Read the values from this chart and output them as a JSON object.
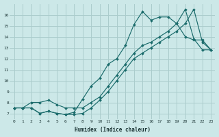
{
  "xlabel": "Humidex (Indice chaleur)",
  "bg_color": "#cce8e8",
  "grid_color": "#aacccc",
  "line_color": "#1a6b6b",
  "xlim": [
    -0.5,
    23.5
  ],
  "ylim": [
    6.5,
    17.0
  ],
  "xticks": [
    0,
    1,
    2,
    3,
    4,
    5,
    6,
    7,
    8,
    9,
    10,
    11,
    12,
    13,
    14,
    15,
    16,
    17,
    18,
    19,
    20,
    21,
    22,
    23
  ],
  "yticks": [
    7,
    8,
    9,
    10,
    11,
    12,
    13,
    14,
    15,
    16
  ],
  "line1_x": [
    0,
    1,
    2,
    3,
    4,
    5,
    6,
    7,
    8,
    9,
    10,
    11,
    12,
    13,
    14,
    15,
    16,
    17,
    18,
    19,
    20,
    21,
    22,
    23
  ],
  "line1_y": [
    7.5,
    7.5,
    7.5,
    7.0,
    7.2,
    7.0,
    6.9,
    6.9,
    7.0,
    7.5,
    8.2,
    9.0,
    10.0,
    11.0,
    12.0,
    12.5,
    13.0,
    13.5,
    14.0,
    14.5,
    15.2,
    16.5,
    13.5,
    12.8
  ],
  "line2_x": [
    0,
    1,
    2,
    3,
    4,
    5,
    6,
    7,
    8,
    9,
    10,
    11,
    12,
    13,
    14,
    15,
    16,
    17,
    18,
    19,
    20,
    21,
    22,
    23
  ],
  "line2_y": [
    7.5,
    7.5,
    7.5,
    7.0,
    7.2,
    7.0,
    6.9,
    7.1,
    8.3,
    9.5,
    10.2,
    11.5,
    12.0,
    13.2,
    15.1,
    16.3,
    15.5,
    15.8,
    15.8,
    15.2,
    14.0,
    13.7,
    13.7,
    12.8
  ],
  "line3_x": [
    0,
    1,
    2,
    3,
    4,
    5,
    6,
    7,
    8,
    9,
    10,
    11,
    12,
    13,
    14,
    15,
    16,
    17,
    18,
    19,
    20,
    21,
    22,
    23
  ],
  "line3_y": [
    7.5,
    7.5,
    8.0,
    8.0,
    8.2,
    7.8,
    7.5,
    7.5,
    7.5,
    8.0,
    8.5,
    9.5,
    10.5,
    11.5,
    12.5,
    13.2,
    13.5,
    14.0,
    14.5,
    15.2,
    16.5,
    13.8,
    12.8,
    12.8
  ]
}
